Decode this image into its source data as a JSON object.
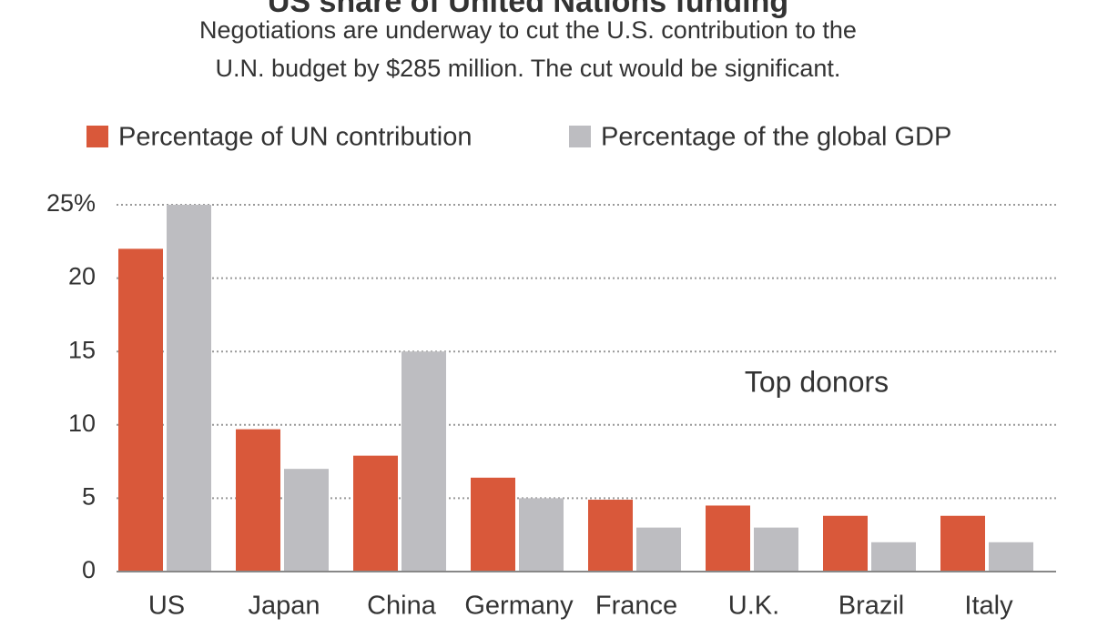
{
  "chart_data": {
    "type": "bar",
    "title": "US share of United Nations funding",
    "subtitle": [
      "Negotiations are underway to cut the U.S. contribution to the",
      "U.N. budget by $285 million. The cut would be significant."
    ],
    "annotation": "Top donors",
    "categories": [
      "US",
      "Japan",
      "China",
      "Germany",
      "France",
      "U.K.",
      "Brazil",
      "Italy"
    ],
    "series": [
      {
        "name": "Percentage of UN contribution",
        "color": "#d9583a",
        "values": [
          22,
          9.7,
          7.9,
          6.4,
          4.9,
          4.5,
          3.8,
          3.8
        ]
      },
      {
        "name": "Percentage of the global GDP",
        "color": "#bdbdc1",
        "values": [
          25,
          7,
          15,
          5,
          3,
          3,
          2,
          2
        ]
      }
    ],
    "ylim": [
      0,
      25
    ],
    "yticks": [
      0,
      5,
      10,
      15,
      20,
      {
        "value": 25,
        "label": "25%"
      }
    ],
    "grid": true,
    "legend": "top"
  }
}
